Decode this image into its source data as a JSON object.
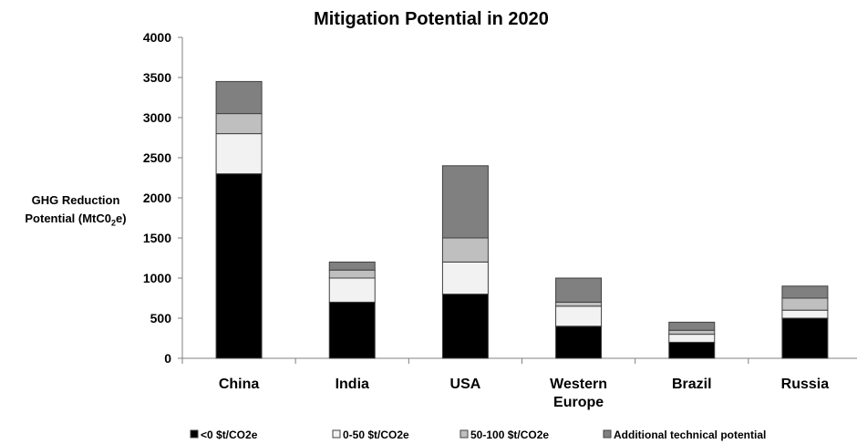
{
  "chart_data": {
    "type": "bar",
    "stacked": true,
    "title": "Mitigation Potential in 2020",
    "ylabel_line1": "GHG Reduction",
    "ylabel_line2_prefix": "Potential (MtC0",
    "ylabel_sub": "2",
    "ylabel_suffix": "e)",
    "xlabel": "",
    "ylim": [
      0,
      4000
    ],
    "yticks": [
      0,
      500,
      1000,
      1500,
      2000,
      2500,
      3000,
      3500,
      4000
    ],
    "grid": false,
    "legend_position": "bottom",
    "categories": [
      [
        "China"
      ],
      [
        "India"
      ],
      [
        "USA"
      ],
      [
        "Western",
        "Europe"
      ],
      [
        "Brazil"
      ],
      [
        "Russia"
      ]
    ],
    "series": [
      {
        "name": "<0 $t/CO2e",
        "color": "#000000",
        "values": [
          2300,
          700,
          800,
          400,
          200,
          500
        ]
      },
      {
        "name": "0-50 $t/CO2e",
        "color": "#f2f2f2",
        "values": [
          500,
          300,
          400,
          250,
          100,
          100
        ]
      },
      {
        "name": "50-100 $t/CO2e",
        "color": "#bfbfbf",
        "values": [
          250,
          100,
          300,
          50,
          50,
          150
        ]
      },
      {
        "name": "Additional technical potential",
        "color": "#808080",
        "values": [
          400,
          100,
          900,
          300,
          100,
          150
        ]
      }
    ]
  }
}
